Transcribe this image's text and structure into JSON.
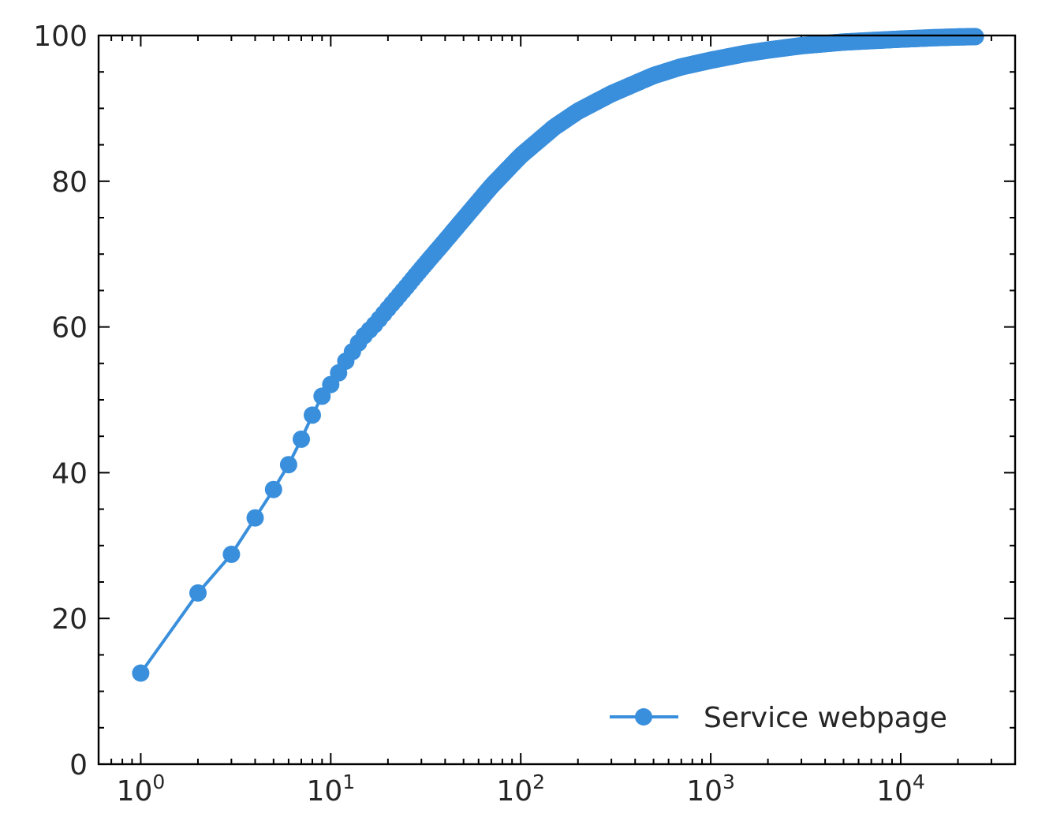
{
  "chart_data": {
    "type": "line",
    "x_scale": "log",
    "xlim": [
      0.6,
      40000
    ],
    "ylim": [
      0,
      100
    ],
    "grid": false,
    "legend_position": "bottom-right",
    "color": "#3a8fdc",
    "x_ticks": [
      {
        "base": "10",
        "exp": "0"
      },
      {
        "base": "10",
        "exp": "1"
      },
      {
        "base": "10",
        "exp": "2"
      },
      {
        "base": "10",
        "exp": "3"
      },
      {
        "base": "10",
        "exp": "4"
      }
    ],
    "y_ticks": [
      "0",
      "20",
      "40",
      "60",
      "80",
      "100"
    ],
    "series": [
      {
        "name": "Service webpage",
        "marker": "circle",
        "points": [
          [
            1,
            12.5
          ],
          [
            2,
            23.5
          ],
          [
            3,
            28.8
          ],
          [
            4,
            33.8
          ],
          [
            5,
            37.7
          ],
          [
            6,
            41.1
          ],
          [
            7,
            44.6
          ],
          [
            8,
            47.9
          ],
          [
            9,
            50.5
          ],
          [
            10,
            52.1
          ],
          [
            11,
            53.7
          ],
          [
            12,
            55.3
          ],
          [
            13,
            56.6
          ],
          [
            14,
            57.8
          ],
          [
            15,
            58.8
          ],
          [
            17,
            60.3
          ],
          [
            20,
            62.5
          ],
          [
            25,
            65.5
          ],
          [
            30,
            68.0
          ],
          [
            40,
            71.8
          ],
          [
            50,
            74.8
          ],
          [
            70,
            79.3
          ],
          [
            100,
            83.5
          ],
          [
            150,
            87.4
          ],
          [
            200,
            89.6
          ],
          [
            300,
            92.0
          ],
          [
            500,
            94.5
          ],
          [
            700,
            95.7
          ],
          [
            1000,
            96.6
          ],
          [
            1500,
            97.5
          ],
          [
            2000,
            98.0
          ],
          [
            3000,
            98.6
          ],
          [
            5000,
            99.1
          ],
          [
            7000,
            99.3
          ],
          [
            10000,
            99.5
          ],
          [
            15000,
            99.7
          ],
          [
            20000,
            99.8
          ],
          [
            25000,
            99.85
          ]
        ]
      }
    ]
  }
}
